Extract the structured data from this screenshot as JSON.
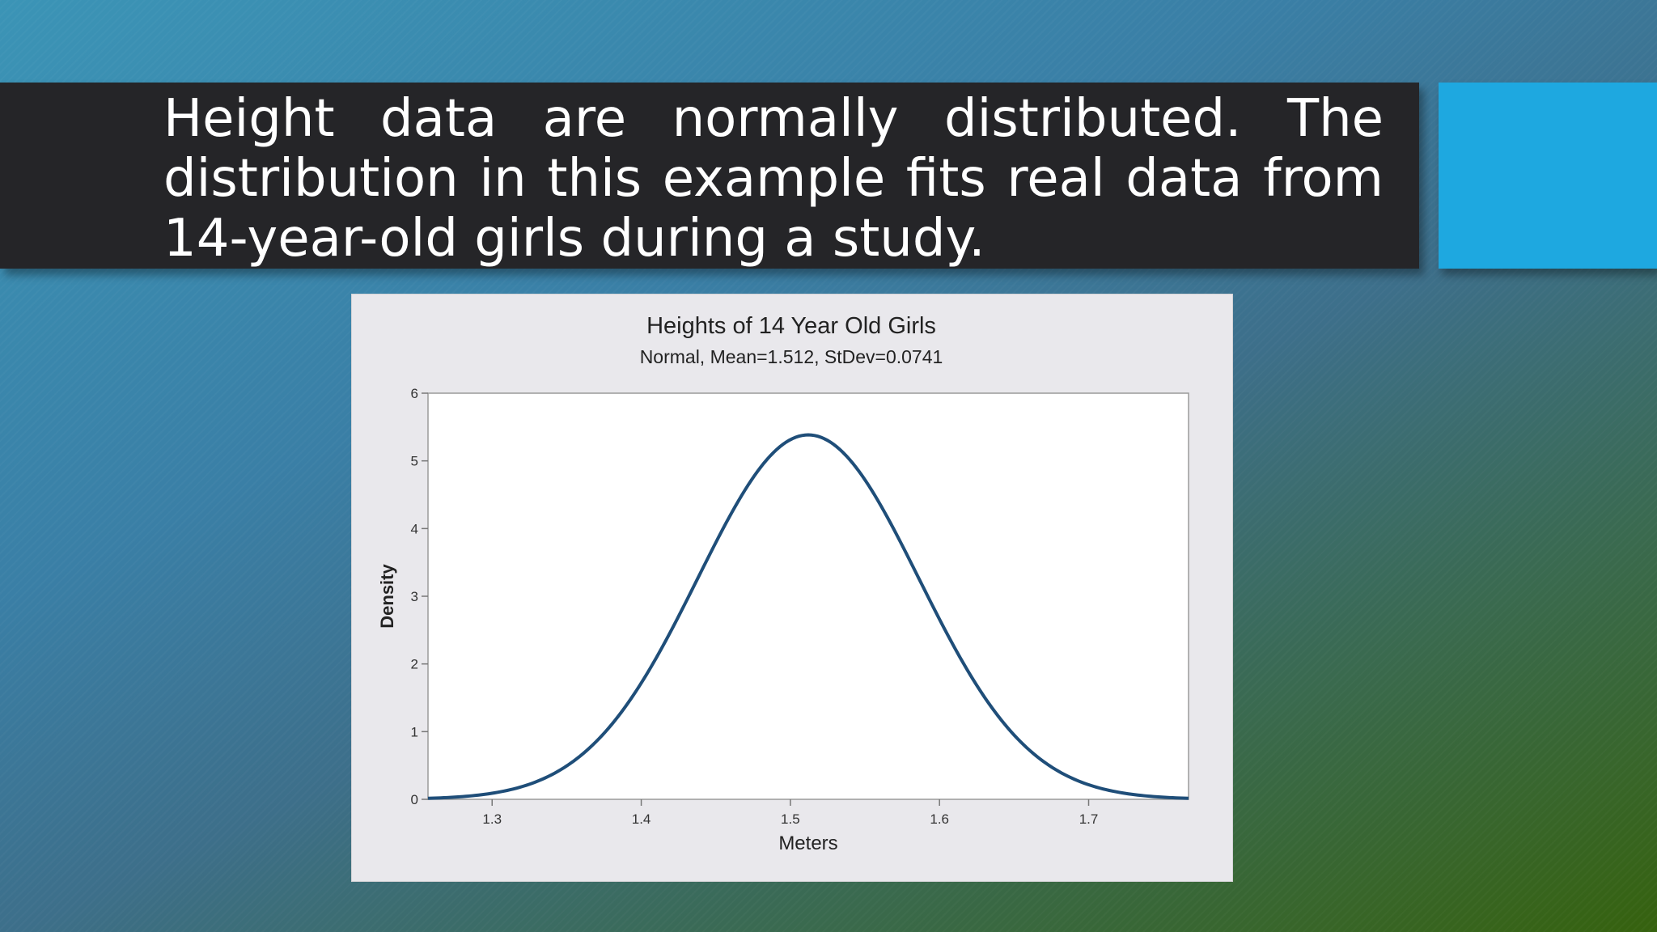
{
  "slide": {
    "heading": "Height data are normally distributed. The distribution in this example fits real data from 14-year-old girls during a study.",
    "colors": {
      "title_band": "#252528",
      "accent_block": "#1ea8e0",
      "curve": "#1f4e79"
    }
  },
  "chart_data": {
    "type": "line",
    "title": "Heights of 14 Year Old Girls",
    "subtitle": "Normal, Mean=1.512, StDev=0.0741",
    "xlabel": "Meters",
    "ylabel": "Density",
    "xlim": [
      1.257,
      1.767
    ],
    "ylim": [
      0,
      6
    ],
    "x_ticks": [
      "1.3",
      "1.4",
      "1.5",
      "1.6",
      "1.7"
    ],
    "y_ticks": [
      "0",
      "1",
      "2",
      "3",
      "4",
      "5",
      "6"
    ],
    "distribution": {
      "name": "Normal",
      "mean": 1.512,
      "stdev": 0.0741
    },
    "grid": false,
    "legend": "none",
    "series": [
      {
        "x": [
          1.26,
          1.28,
          1.3,
          1.32,
          1.34,
          1.36,
          1.38,
          1.4,
          1.42,
          1.44,
          1.46,
          1.48,
          1.5,
          1.512,
          1.52,
          1.54,
          1.56,
          1.58,
          1.6,
          1.62,
          1.64,
          1.66,
          1.68,
          1.7,
          1.72,
          1.74,
          1.76
        ],
        "values": [
          0.03,
          0.04,
          0.09,
          0.19,
          0.37,
          0.66,
          1.1,
          1.71,
          2.47,
          3.3,
          4.13,
          4.84,
          5.31,
          5.38,
          5.36,
          5.01,
          4.41,
          3.6,
          2.74,
          1.94,
          1.27,
          0.78,
          0.44,
          0.22,
          0.1,
          0.04,
          0.02
        ]
      }
    ]
  }
}
